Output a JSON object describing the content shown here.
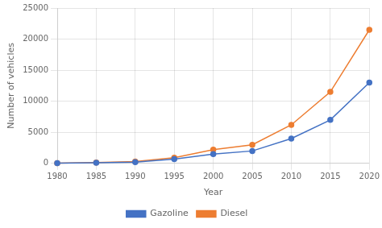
{
  "chart_data": {
    "type": "line",
    "x": [
      1980,
      1985,
      1990,
      1995,
      2000,
      2005,
      2010,
      2015,
      2020
    ],
    "series": [
      {
        "name": "Gazoline",
        "color": "#4472C4",
        "marker": "circle",
        "values": [
          50,
          100,
          200,
          700,
          1500,
          2000,
          4000,
          7000,
          13000
        ]
      },
      {
        "name": "Diesel",
        "color": "#ED7D31",
        "marker": "circle",
        "values": [
          50,
          120,
          300,
          900,
          2200,
          3000,
          6200,
          11500,
          21500
        ]
      }
    ],
    "xlabel": "Year",
    "ylabel": "Number of vehicles",
    "xlim": [
      1980,
      2020
    ],
    "xticks": [
      1980,
      1985,
      1990,
      1995,
      2000,
      2005,
      2010,
      2015,
      2020
    ],
    "ylim": [
      0,
      25000
    ],
    "yticks": [
      0,
      5000,
      10000,
      15000,
      20000,
      25000
    ],
    "grid": true,
    "legend": "bottom"
  }
}
